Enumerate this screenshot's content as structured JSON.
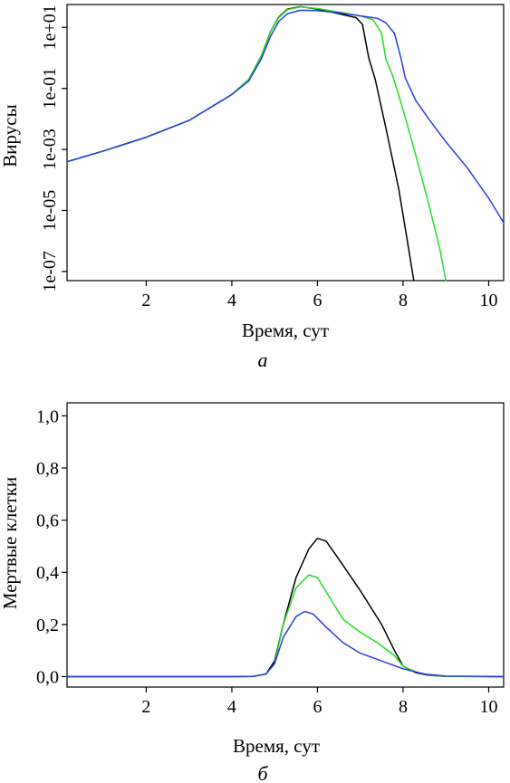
{
  "chart_data": [
    {
      "type": "line",
      "panel_label": "a",
      "xlabel": "Время, сут",
      "ylabel": "Вирусы",
      "yscale": "log10",
      "xlim": [
        0.15,
        10.35
      ],
      "ylim_exp": [
        -7.3,
        1.75
      ],
      "x_ticks": [
        2,
        4,
        6,
        8,
        10
      ],
      "x_tick_labels": [
        "2",
        "4",
        "6",
        "8",
        "10"
      ],
      "y_ticks_exp": [
        -7,
        -5,
        -3,
        -1,
        1
      ],
      "y_tick_labels": [
        "1e-07",
        "1e-05",
        "1e-03",
        "1e-01",
        "1e+01"
      ],
      "grid": false,
      "series": [
        {
          "color": "#000000",
          "points": [
            [
              0.15,
              -3.4
            ],
            [
              1,
              -3.05
            ],
            [
              2,
              -2.6
            ],
            [
              3,
              -2.05
            ],
            [
              4,
              -1.2
            ],
            [
              4.4,
              -0.7
            ],
            [
              4.7,
              0.1
            ],
            [
              4.9,
              0.85
            ],
            [
              5.1,
              1.35
            ],
            [
              5.3,
              1.6
            ],
            [
              5.6,
              1.68
            ],
            [
              6.0,
              1.6
            ],
            [
              6.5,
              1.45
            ],
            [
              6.9,
              1.32
            ],
            [
              7.05,
              1.1
            ],
            [
              7.2,
              0
            ],
            [
              7.35,
              -0.7
            ],
            [
              7.6,
              -2.3
            ],
            [
              7.9,
              -4.3
            ],
            [
              8.1,
              -6.0
            ],
            [
              8.25,
              -7.3
            ]
          ]
        },
        {
          "color": "#22dd22",
          "points": [
            [
              0.15,
              -3.4
            ],
            [
              1,
              -3.05
            ],
            [
              2,
              -2.6
            ],
            [
              3,
              -2.05
            ],
            [
              4,
              -1.2
            ],
            [
              4.4,
              -0.7
            ],
            [
              4.7,
              0.1
            ],
            [
              4.9,
              0.85
            ],
            [
              5.1,
              1.33
            ],
            [
              5.3,
              1.58
            ],
            [
              5.6,
              1.67
            ],
            [
              6.0,
              1.62
            ],
            [
              6.5,
              1.5
            ],
            [
              7.0,
              1.38
            ],
            [
              7.3,
              1.25
            ],
            [
              7.5,
              0.8
            ],
            [
              7.6,
              -0.05
            ],
            [
              7.75,
              -0.55
            ],
            [
              8.0,
              -1.7
            ],
            [
              8.3,
              -3.2
            ],
            [
              8.6,
              -4.8
            ],
            [
              8.85,
              -6.2
            ],
            [
              9.0,
              -7.3
            ]
          ]
        },
        {
          "color": "#2a3de0",
          "points": [
            [
              0.15,
              -3.4
            ],
            [
              1,
              -3.05
            ],
            [
              2,
              -2.6
            ],
            [
              3,
              -2.05
            ],
            [
              4,
              -1.2
            ],
            [
              4.4,
              -0.75
            ],
            [
              4.7,
              0.0
            ],
            [
              4.9,
              0.7
            ],
            [
              5.1,
              1.2
            ],
            [
              5.3,
              1.45
            ],
            [
              5.6,
              1.56
            ],
            [
              6.0,
              1.55
            ],
            [
              6.5,
              1.48
            ],
            [
              7.0,
              1.38
            ],
            [
              7.4,
              1.3
            ],
            [
              7.6,
              1.15
            ],
            [
              7.8,
              0.8
            ],
            [
              7.95,
              0.0
            ],
            [
              8.05,
              -0.65
            ],
            [
              8.3,
              -1.4
            ],
            [
              8.6,
              -2.0
            ],
            [
              9.0,
              -2.75
            ],
            [
              9.5,
              -3.6
            ],
            [
              10.0,
              -4.6
            ],
            [
              10.35,
              -5.4
            ]
          ]
        }
      ]
    },
    {
      "type": "line",
      "panel_label": "б",
      "xlabel": "Время, сут",
      "ylabel": "Мертвые клетки",
      "xlim": [
        0.15,
        10.35
      ],
      "ylim": [
        -0.04,
        1.05
      ],
      "x_ticks": [
        2,
        4,
        6,
        8,
        10
      ],
      "x_tick_labels": [
        "2",
        "4",
        "6",
        "8",
        "10"
      ],
      "y_ticks": [
        0,
        0.2,
        0.4,
        0.6,
        0.8,
        1.0
      ],
      "y_tick_labels": [
        "0,0",
        "0,2",
        "0,4",
        "0,6",
        "0,8",
        "1,0"
      ],
      "grid": false,
      "series": [
        {
          "color": "#000000",
          "points": [
            [
              0.15,
              0
            ],
            [
              4.0,
              0
            ],
            [
              4.5,
              0.001
            ],
            [
              4.8,
              0.01
            ],
            [
              5.0,
              0.06
            ],
            [
              5.2,
              0.2
            ],
            [
              5.5,
              0.38
            ],
            [
              5.8,
              0.49
            ],
            [
              6.0,
              0.53
            ],
            [
              6.2,
              0.52
            ],
            [
              6.5,
              0.45
            ],
            [
              7.0,
              0.33
            ],
            [
              7.5,
              0.2
            ],
            [
              7.8,
              0.1
            ],
            [
              8.0,
              0.04
            ],
            [
              8.3,
              0.015
            ],
            [
              8.6,
              0.005
            ],
            [
              9.0,
              0.001
            ],
            [
              10.35,
              0
            ]
          ]
        },
        {
          "color": "#22dd22",
          "points": [
            [
              0.15,
              0
            ],
            [
              4.0,
              0
            ],
            [
              4.5,
              0.001
            ],
            [
              4.8,
              0.01
            ],
            [
              5.0,
              0.05
            ],
            [
              5.2,
              0.2
            ],
            [
              5.5,
              0.34
            ],
            [
              5.8,
              0.39
            ],
            [
              6.0,
              0.38
            ],
            [
              6.3,
              0.3
            ],
            [
              6.6,
              0.22
            ],
            [
              7.0,
              0.17
            ],
            [
              7.4,
              0.13
            ],
            [
              7.8,
              0.08
            ],
            [
              8.0,
              0.04
            ],
            [
              8.3,
              0.018
            ],
            [
              8.6,
              0.006
            ],
            [
              9.0,
              0.001
            ],
            [
              10.35,
              0
            ]
          ]
        },
        {
          "color": "#2a3de0",
          "points": [
            [
              0.15,
              0
            ],
            [
              4.0,
              0
            ],
            [
              4.5,
              0.001
            ],
            [
              4.8,
              0.01
            ],
            [
              5.0,
              0.05
            ],
            [
              5.2,
              0.15
            ],
            [
              5.5,
              0.23
            ],
            [
              5.7,
              0.25
            ],
            [
              5.9,
              0.24
            ],
            [
              6.2,
              0.19
            ],
            [
              6.6,
              0.13
            ],
            [
              7.0,
              0.09
            ],
            [
              7.5,
              0.06
            ],
            [
              8.0,
              0.03
            ],
            [
              8.5,
              0.01
            ],
            [
              9.0,
              0.002
            ],
            [
              10.35,
              0
            ]
          ]
        }
      ]
    }
  ]
}
